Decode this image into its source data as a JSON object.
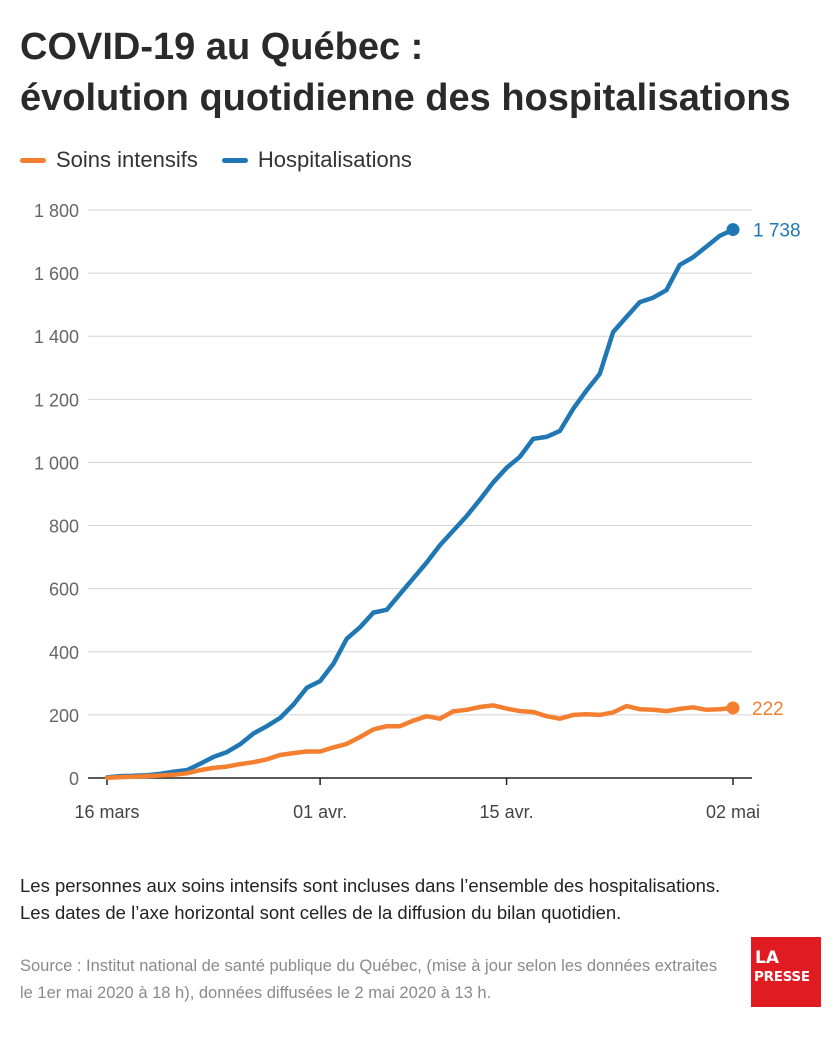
{
  "title": {
    "line1": "COVID-19 au Québec :",
    "line2": "évolution quotidienne des hospitalisations"
  },
  "legend": [
    {
      "label": "Soins intensifs",
      "color": "#f47f30"
    },
    {
      "label": "Hospitalisations",
      "color": "#1f77b4"
    }
  ],
  "chart_data": {
    "type": "line",
    "x": [
      "16 mars",
      "17 mars",
      "18 mars",
      "19 mars",
      "20 mars",
      "21 mars",
      "22 mars",
      "23 mars",
      "24 mars",
      "25 mars",
      "26 mars",
      "27 mars",
      "28 mars",
      "29 mars",
      "30 mars",
      "31 mars",
      "01 avr.",
      "02 avr.",
      "03 avr.",
      "04 avr.",
      "05 avr.",
      "06 avr.",
      "07 avr.",
      "08 avr.",
      "09 avr.",
      "10 avr.",
      "11 avr.",
      "12 avr.",
      "13 avr.",
      "14 avr.",
      "15 avr.",
      "16 avr.",
      "17 avr.",
      "18 avr.",
      "19 avr.",
      "20 avr.",
      "21 avr.",
      "22 avr.",
      "23 avr.",
      "24 avr.",
      "25 avr.",
      "26 avr.",
      "27 avr.",
      "28 avr.",
      "29 avr.",
      "30 avr.",
      "01 mai",
      "02 mai"
    ],
    "x_ticks": [
      "16 mars",
      "01 avr.",
      "15 avr.",
      "02 mai"
    ],
    "series": [
      {
        "name": "Hospitalisations",
        "color": "#1f77b4",
        "values": [
          2,
          6,
          7,
          9,
          13,
          20,
          25,
          45,
          67,
          82,
          107,
          141,
          164,
          190,
          233,
          286,
          307,
          362,
          441,
          478,
          524,
          533,
          583,
          633,
          683,
          738,
          784,
          830,
          882,
          937,
          983,
          1018,
          1075,
          1081,
          1100,
          1170,
          1228,
          1281,
          1413,
          1461,
          1508,
          1522,
          1546,
          1626,
          1650,
          1684,
          1718,
          1738
        ]
      },
      {
        "name": "Soins intensifs",
        "color": "#f47f30",
        "values": [
          1,
          3,
          4,
          6,
          8,
          10,
          15,
          25,
          32,
          36,
          44,
          50,
          59,
          73,
          79,
          84,
          84,
          97,
          108,
          130,
          154,
          164,
          164,
          182,
          196,
          188,
          211,
          216,
          225,
          230,
          220,
          212,
          209,
          196,
          188,
          200,
          202,
          200,
          208,
          228,
          218,
          216,
          212,
          219,
          224,
          216,
          218,
          222
        ]
      }
    ],
    "end_labels": {
      "hospitalisations": "1 738",
      "soins_intensifs": "222"
    },
    "y_ticks": [
      {
        "value": 0,
        "label": "0"
      },
      {
        "value": 200,
        "label": "200"
      },
      {
        "value": 400,
        "label": "400"
      },
      {
        "value": 600,
        "label": "600"
      },
      {
        "value": 800,
        "label": "800"
      },
      {
        "value": 1000,
        "label": "1 000"
      },
      {
        "value": 1200,
        "label": "1 200"
      },
      {
        "value": 1400,
        "label": "1 400"
      },
      {
        "value": 1600,
        "label": "1 600"
      },
      {
        "value": 1800,
        "label": "1 800"
      }
    ],
    "ylim": [
      0,
      1800
    ],
    "grid": true,
    "legend_position": "top-left"
  },
  "note": {
    "line1": "Les personnes aux soins intensifs sont incluses dans l’ensemble des hospitalisations.",
    "line2": "Les dates de l’axe horizontal sont celles de la diffusion du bilan quotidien."
  },
  "source": "Source : Institut national de santé publique du Québec, (mise à jour selon les données extraites le 1er mai 2020 à 18 h), données diffusées le 2 mai 2020 à 13 h.",
  "logo": {
    "line1": "LA",
    "line2": "PRESSE",
    "color": "#e11b22"
  }
}
